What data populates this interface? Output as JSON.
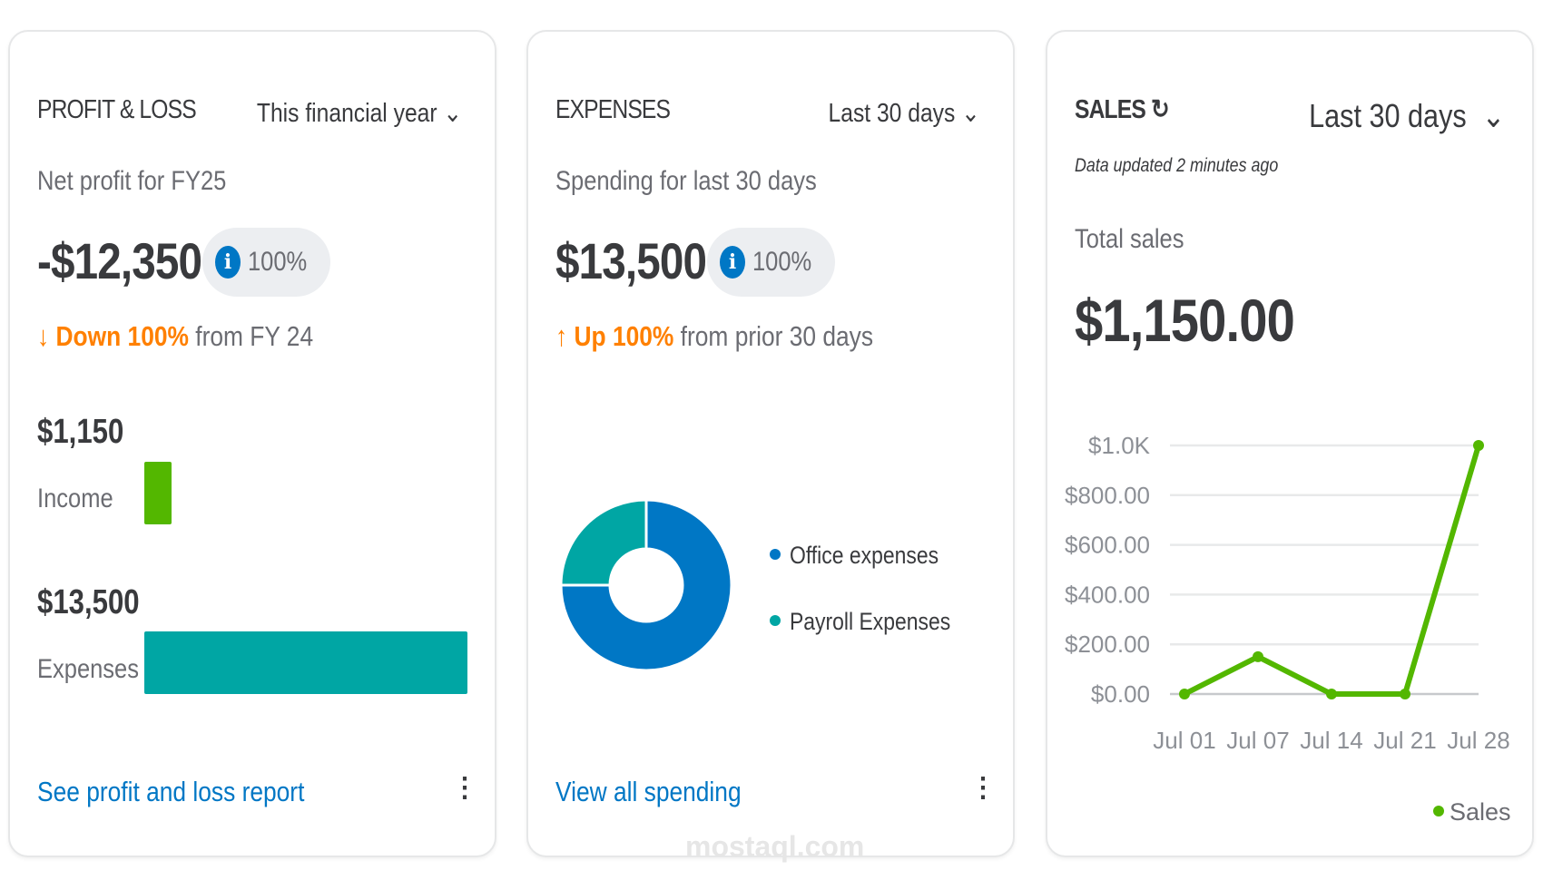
{
  "colors": {
    "income": "#53b700",
    "expenses_bar": "#00a6a4",
    "office": "#0077c5",
    "payroll": "#00a6a4",
    "sales": "#53b700",
    "trend": "#ff8000",
    "link": "#0077c5"
  },
  "profit_loss": {
    "title": "PROFIT & LOSS",
    "period": "This financial year",
    "subtitle": "Net profit for FY25",
    "amount": "-$12,350",
    "badge_icon": "info-icon",
    "badge_pct": "100%",
    "trend_icon": "arrow-down-icon",
    "trend_strong": "Down 100%",
    "trend_rest": " from FY 24",
    "income_amount": "$1,150",
    "income_label": "Income",
    "expenses_amount": "$13,500",
    "expenses_label": "Expenses",
    "link": "See profit and loss report"
  },
  "expenses": {
    "title": "EXPENSES",
    "period": "Last 30 days",
    "subtitle": "Spending for last 30 days",
    "amount": "$13,500",
    "badge_icon": "info-icon",
    "badge_pct": "100%",
    "trend_icon": "arrow-up-icon",
    "trend_strong": "Up 100%",
    "trend_rest": " from prior 30 days",
    "link": "View all spending"
  },
  "sales": {
    "title": "SALES",
    "refresh_icon": "refresh-icon",
    "period": "Last 30 days",
    "updated": "Data updated 2 minutes ago",
    "subtitle": "Total sales",
    "amount": "$1,150.00"
  },
  "chart_data": [
    {
      "type": "bar",
      "orientation": "horizontal",
      "categories": [
        "Income",
        "Expenses"
      ],
      "values": [
        1150,
        13500
      ]
    },
    {
      "type": "pie",
      "donut": true,
      "categories": [
        "Office expenses",
        "Payroll Expenses"
      ],
      "values": [
        75,
        25
      ],
      "legend": "right"
    },
    {
      "type": "line",
      "x": [
        "Jul 01",
        "Jul 07",
        "Jul 14",
        "Jul 21",
        "Jul 28"
      ],
      "series": [
        {
          "name": "Sales",
          "values": [
            0,
            150,
            0,
            0,
            1000
          ]
        }
      ],
      "yticks": [
        "$0.00",
        "$200.00",
        "$400.00",
        "$600.00",
        "$800.00",
        "$1.0K"
      ],
      "ylim": [
        0,
        1000
      ],
      "grid": true,
      "legend": "bottom-right"
    }
  ],
  "watermark": "mostaql.com"
}
